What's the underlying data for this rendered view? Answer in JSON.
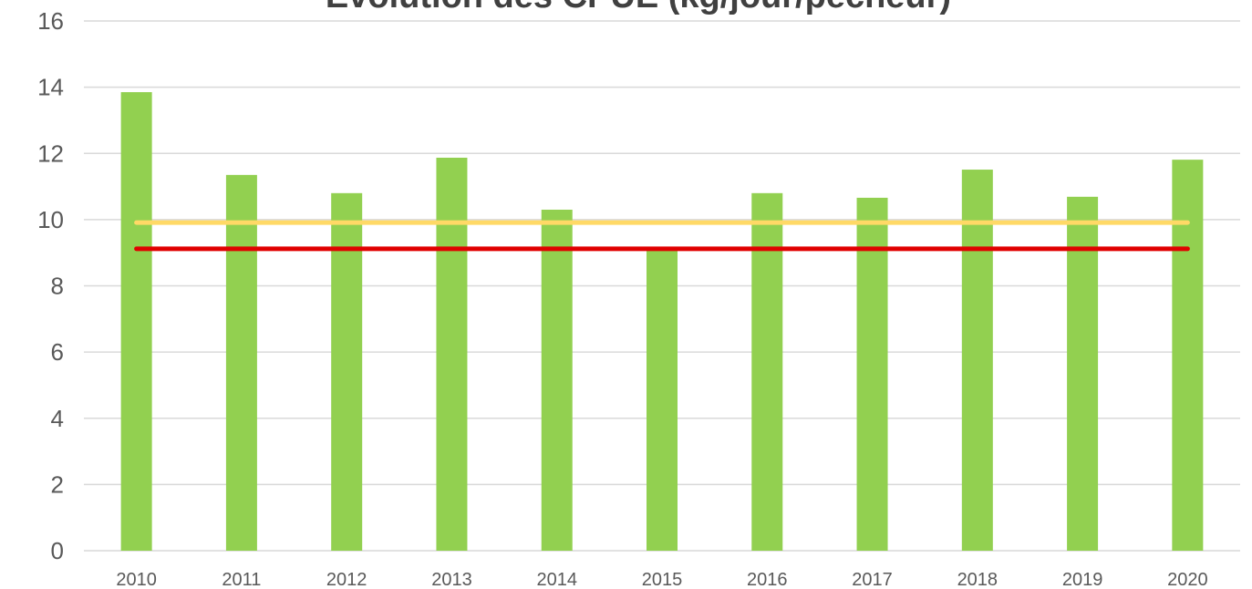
{
  "chart_data": {
    "type": "bar",
    "title": "Évolution des CPUE (kg/jour/pêcheur)",
    "categories": [
      "2010",
      "2011",
      "2012",
      "2013",
      "2014",
      "2015",
      "2016",
      "2017",
      "2018",
      "2019",
      "2020"
    ],
    "series": [
      {
        "type": "bar",
        "color": "#92d050",
        "values": [
          13.85,
          11.35,
          10.8,
          11.87,
          10.3,
          9.17,
          10.8,
          10.66,
          11.51,
          10.69,
          11.81
        ]
      },
      {
        "type": "line",
        "color": "#ffd966",
        "values": [
          9.91,
          9.91,
          9.91,
          9.91,
          9.91,
          9.91,
          9.91,
          9.91,
          9.91,
          9.91,
          9.91
        ]
      },
      {
        "type": "line",
        "color": "#e00000",
        "values": [
          9.12,
          9.12,
          9.12,
          9.12,
          9.12,
          9.12,
          9.12,
          9.12,
          9.12,
          9.12,
          9.12
        ]
      }
    ],
    "ylim": [
      0,
      16
    ],
    "yticks": [
      0,
      2,
      4,
      6,
      8,
      10,
      12,
      14,
      16
    ],
    "grid": true
  }
}
